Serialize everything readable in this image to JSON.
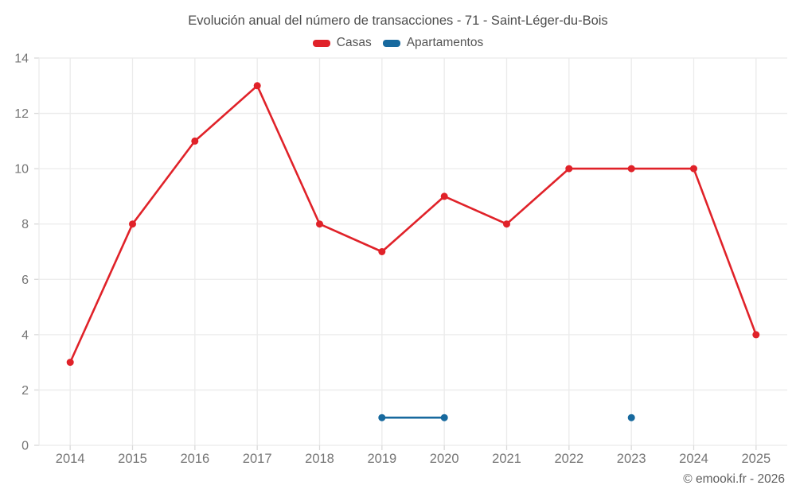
{
  "title": "Evolución anual del número de transacciones - 71 - Saint-Léger-du-Bois",
  "footer": "© emooki.fr - 2026",
  "legend": {
    "items": [
      {
        "label": "Casas",
        "color": "#e02229"
      },
      {
        "label": "Apartamentos",
        "color": "#17699e"
      }
    ]
  },
  "colors": {
    "background": "#ffffff",
    "grid": "#ebebeb",
    "tick": "#d9d9d9",
    "axis_label": "#757575",
    "title": "#4d4d4d",
    "footer": "#5f5f5f",
    "casas": "#e02229",
    "apartamentos": "#17699e"
  },
  "chart_data": {
    "type": "line",
    "title": "Evolución anual del número de transacciones - 71 - Saint-Léger-du-Bois",
    "categories": [
      "2014",
      "2015",
      "2016",
      "2017",
      "2018",
      "2019",
      "2020",
      "2021",
      "2022",
      "2023",
      "2024",
      "2025"
    ],
    "series": [
      {
        "name": "Casas",
        "color": "#e02229",
        "values": [
          3,
          8,
          11,
          13,
          8,
          7,
          9,
          8,
          10,
          10,
          10,
          4
        ]
      },
      {
        "name": "Apartamentos",
        "color": "#17699e",
        "values": [
          null,
          null,
          null,
          null,
          null,
          1,
          1,
          null,
          null,
          1,
          null,
          null
        ]
      }
    ],
    "xlabel": "",
    "ylabel": "",
    "ylim": [
      0,
      14
    ],
    "ytick_step": 2,
    "grid": true,
    "legend_position": "top"
  }
}
